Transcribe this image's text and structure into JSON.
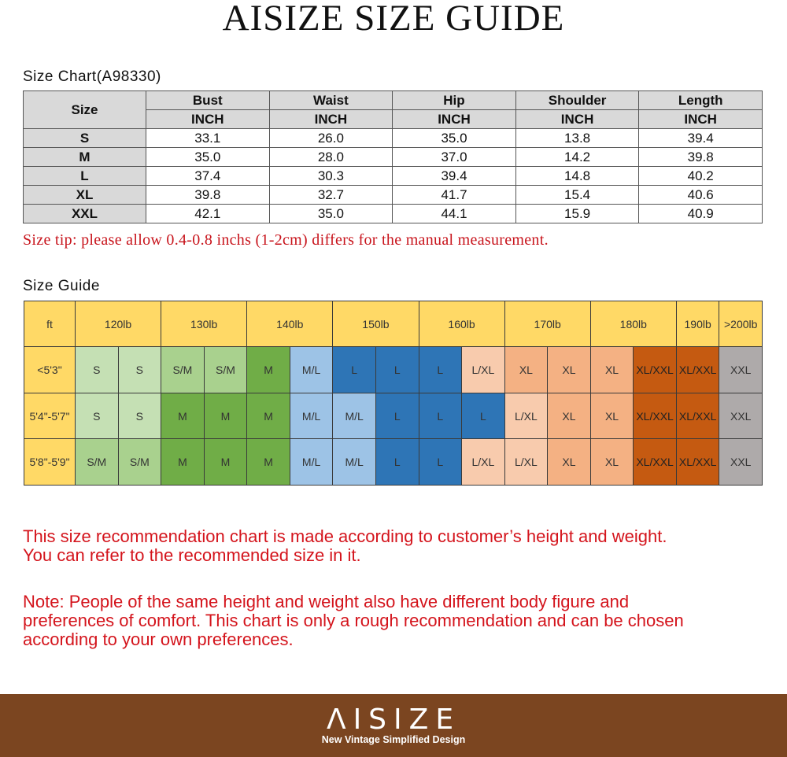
{
  "title": "AISIZE SIZE GUIDE",
  "size_chart": {
    "label": "Size Chart(A98330)",
    "size_header": "Size",
    "columns": [
      {
        "name": "Bust",
        "unit": "INCH"
      },
      {
        "name": "Waist",
        "unit": "INCH"
      },
      {
        "name": "Hip",
        "unit": "INCH"
      },
      {
        "name": "Shoulder",
        "unit": "INCH"
      },
      {
        "name": "Length",
        "unit": "INCH"
      }
    ],
    "rows": [
      {
        "size": "S",
        "values": [
          "33.1",
          "26.0",
          "35.0",
          "13.8",
          "39.4"
        ]
      },
      {
        "size": "M",
        "values": [
          "35.0",
          "28.0",
          "37.0",
          "14.2",
          "39.8"
        ]
      },
      {
        "size": "L",
        "values": [
          "37.4",
          "30.3",
          "39.4",
          "14.8",
          "40.2"
        ]
      },
      {
        "size": "XL",
        "values": [
          "39.8",
          "32.7",
          "41.7",
          "15.4",
          "40.6"
        ]
      },
      {
        "size": "XXL",
        "values": [
          "42.1",
          "35.0",
          "44.1",
          "15.9",
          "40.9"
        ]
      }
    ],
    "tip": "Size tip: please allow 0.4-0.8 inchs (1-2cm) differs for the manual measurement."
  },
  "size_guide": {
    "label": "Size Guide",
    "corner": "ft",
    "weights": [
      {
        "label": "120lb",
        "span": 2
      },
      {
        "label": "130lb",
        "span": 2
      },
      {
        "label": "140lb",
        "span": 2
      },
      {
        "label": "150lb",
        "span": 2
      },
      {
        "label": "160lb",
        "span": 2
      },
      {
        "label": "170lb",
        "span": 2
      },
      {
        "label": "180lb",
        "span": 2
      },
      {
        "label": "190lb",
        "span": 1
      },
      {
        "label": ">200lb",
        "span": 1
      }
    ],
    "rows": [
      {
        "height": "<5'3\"",
        "sizes": [
          "S",
          "S",
          "S/M",
          "S/M",
          "M",
          "M/L",
          "L",
          "L",
          "L",
          "L/XL",
          "XL",
          "XL",
          "XL",
          "XL/XXL",
          "XL/XXL",
          "XXL"
        ]
      },
      {
        "height": "5'4\"-5'7\"",
        "sizes": [
          "S",
          "S",
          "M",
          "M",
          "M",
          "M/L",
          "M/L",
          "L",
          "L",
          "L",
          "L/XL",
          "XL",
          "XL",
          "XL/XXL",
          "XL/XXL",
          "XXL"
        ]
      },
      {
        "height": "5'8\"-5'9\"",
        "sizes": [
          "S/M",
          "S/M",
          "M",
          "M",
          "M",
          "M/L",
          "M/L",
          "L",
          "L",
          "L/XL",
          "L/XL",
          "XL",
          "XL",
          "XL/XXL",
          "XL/XXL",
          "XXL"
        ]
      }
    ],
    "colors": {
      "header": "#ffd966",
      "S": "#c5e0b4",
      "S/M": "#a9d18e",
      "M": "#70ad47",
      "M/L": "#9dc3e6",
      "L": "#2e75b6",
      "L/XL": "#f8cbad",
      "XL": "#f4b183",
      "XL/XXL": "#c55a11",
      "XXL": "#aeaaaa"
    }
  },
  "notes": {
    "recommendation": [
      "This size recommendation chart is made according to customer’s height and weight.",
      "You can refer to the recommended size in it."
    ],
    "note": [
      "Note: People of the same height and weight also have different body figure and",
      "preferences of comfort. This chart is only a rough recommendation and can be chosen",
      "according to your own preferences."
    ]
  },
  "footer": {
    "logo": "ΛISIZE",
    "tagline": "New Vintage Simplified Design",
    "background": "#7b4520"
  }
}
